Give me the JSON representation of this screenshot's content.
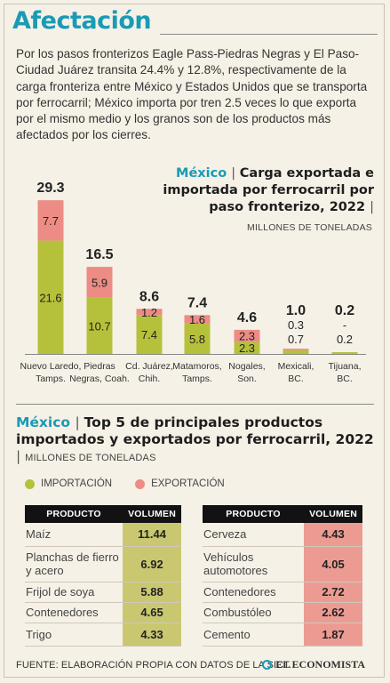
{
  "header": {
    "title": "Afectación",
    "intro": "Por los pasos fronterizos Eagle Pass-Piedras Negras y El Paso-Ciudad Juárez transita 24.4% y 12.8%, respectivamente de la carga fronteriza entre México y Estados Unidos que se transporta por ferrocarril; México importa por tren 2.5 veces lo que exporta por el mismo medio y los granos son de los productos más afectados por los cierres."
  },
  "colors": {
    "accent": "#1a9bb5",
    "importacion": "#b6c13b",
    "exportacion": "#ec8c85"
  },
  "chart_data": {
    "type": "bar",
    "stacked": true,
    "title_country": "México",
    "title_rest": "Carga exportada e importada por ferrocarril por paso fronterizo, 2022",
    "unit": "MILLONES DE TONELADAS",
    "categories": [
      "Nuevo Laredo, Tamps.",
      "Piedras Negras, Coah.",
      "Cd. Juárez, Chih.",
      "Matamoros, Tamps.",
      "Nogales, Son.",
      "Mexicali, BC.",
      "Tijuana, BC."
    ],
    "category_lines": [
      [
        "Nuevo Laredo,",
        "Tamps."
      ],
      [
        "Piedras",
        "Negras, Coah."
      ],
      [
        "Cd. Juárez,",
        "Chih."
      ],
      [
        "Matamoros,",
        "Tamps."
      ],
      [
        "Nogales,",
        "Son."
      ],
      [
        "Mexicali,",
        "BC."
      ],
      [
        "Tijuana,",
        "BC."
      ]
    ],
    "totals": [
      "29.3",
      "16.5",
      "8.6",
      "7.4",
      "4.6",
      "1.0",
      "0.2"
    ],
    "series": [
      {
        "name": "IMPORTACIÓN",
        "values": [
          21.6,
          10.7,
          7.4,
          5.8,
          2.3,
          0.7,
          0.2
        ],
        "labels": [
          "21.6",
          "10.7",
          "7.4",
          "5.8",
          "2.3",
          "0.7",
          "0.2"
        ]
      },
      {
        "name": "EXPORTACIÓN",
        "values": [
          7.7,
          5.9,
          1.2,
          1.6,
          2.3,
          0.3,
          0
        ],
        "labels": [
          "7.7",
          "5.9",
          "1.2",
          "1.6",
          "2.3",
          "0.3",
          "-"
        ]
      }
    ]
  },
  "top5": {
    "title_country": "México",
    "title_rest": "Top 5 de principales productos importados y exportados por ferrocarril, 2022",
    "unit": "MILLONES DE TONELADAS",
    "legend": {
      "import": "IMPORTACIÓN",
      "export": "EXPORTACIÓN"
    },
    "headers": {
      "product": "PRODUCTO",
      "volume": "VOLUMEN"
    },
    "imports": [
      {
        "product": "Maíz",
        "volume": "11.44"
      },
      {
        "product": "Planchas de fierro y acero",
        "volume": "6.92"
      },
      {
        "product": "Frijol de soya",
        "volume": "5.88"
      },
      {
        "product": "Contenedores",
        "volume": "4.65"
      },
      {
        "product": "Trigo",
        "volume": "4.33"
      }
    ],
    "exports": [
      {
        "product": "Cerveza",
        "volume": "4.43"
      },
      {
        "product": "Vehículos automotores",
        "volume": "4.05"
      },
      {
        "product": "Contenedores",
        "volume": "2.72"
      },
      {
        "product": "Combustóleo",
        "volume": "2.62"
      },
      {
        "product": "Cemento",
        "volume": "1.87"
      }
    ]
  },
  "footer": {
    "source": "FUENTE: ELABORACIÓN PROPIA CON DATOS DE LA SICT.",
    "logo": "EL ECONOMISTA"
  }
}
